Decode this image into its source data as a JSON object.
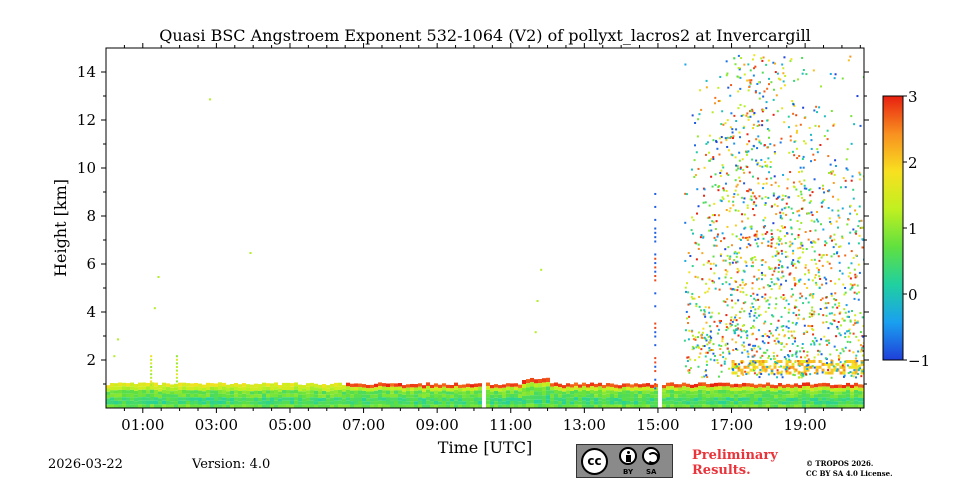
{
  "chart_data": {
    "type": "heatmap",
    "title": "Quasi BSC Angstroem Exponent 532-1064 (V2) of pollyxt_lacros2 at Invercargill",
    "xlabel": "Time [UTC]",
    "ylabel": "Height [km]",
    "xlim_hours": [
      0.0,
      20.6
    ],
    "ylim_km": [
      0,
      15
    ],
    "x_ticks": [
      {
        "value": 1,
        "label": "01:00"
      },
      {
        "value": 3,
        "label": "03:00"
      },
      {
        "value": 5,
        "label": "05:00"
      },
      {
        "value": 7,
        "label": "07:00"
      },
      {
        "value": 9,
        "label": "09:00"
      },
      {
        "value": 11,
        "label": "11:00"
      },
      {
        "value": 13,
        "label": "13:00"
      },
      {
        "value": 15,
        "label": "15:00"
      },
      {
        "value": 17,
        "label": "17:00"
      },
      {
        "value": 19,
        "label": "19:00"
      }
    ],
    "y_ticks": [
      {
        "value": 2,
        "label": "2"
      },
      {
        "value": 4,
        "label": "4"
      },
      {
        "value": 6,
        "label": "6"
      },
      {
        "value": 8,
        "label": "8"
      },
      {
        "value": 10,
        "label": "10"
      },
      {
        "value": 12,
        "label": "12"
      },
      {
        "value": 14,
        "label": "14"
      }
    ],
    "colorbar": {
      "min": -1,
      "max": 3,
      "ticks": [
        {
          "value": 3,
          "label": "3"
        },
        {
          "value": 2,
          "label": "2"
        },
        {
          "value": 1,
          "label": "1"
        },
        {
          "value": 0,
          "label": "0"
        },
        {
          "value": -1,
          "label": "−1"
        }
      ],
      "colormap": [
        "#1f3fd9",
        "#1aa0f0",
        "#20d0a0",
        "#60e040",
        "#c0f020",
        "#f8e020",
        "#f89020",
        "#e82010"
      ]
    },
    "data_gaps_hours": [
      [
        10.15,
        10.3
      ],
      [
        14.95,
        15.1
      ]
    ],
    "layers": [
      {
        "name": "boundary layer",
        "start_h": 0.0,
        "end_h": 20.6,
        "bottom_km": 0.0,
        "top_km": 1.0,
        "typical_value": 0.8
      },
      {
        "name": "aerosol layer",
        "start_h": 17.0,
        "end_h": 20.6,
        "bottom_km": 1.4,
        "top_km": 2.0,
        "typical_value": 2.0
      },
      {
        "name": "cloud / noise region",
        "start_h": 15.0,
        "end_h": 20.6,
        "bottom_km": 1.0,
        "top_km": 14.5,
        "typical_value": 1.0
      }
    ]
  },
  "footer": {
    "date": "2026-03-22",
    "version": "Version: 4.0",
    "preliminary_line1": "Preliminary",
    "preliminary_line2": "Results.",
    "copyright_line1": "© TROPOS 2026.",
    "copyright_line2": "CC BY SA 4.0 License."
  },
  "license_badge": {
    "cc": "cc",
    "by": "BY",
    "sa": "SA"
  },
  "colors": {
    "preliminary": "#e8343a",
    "axis": "#000000",
    "badge_bg": "#8a8a8a"
  }
}
